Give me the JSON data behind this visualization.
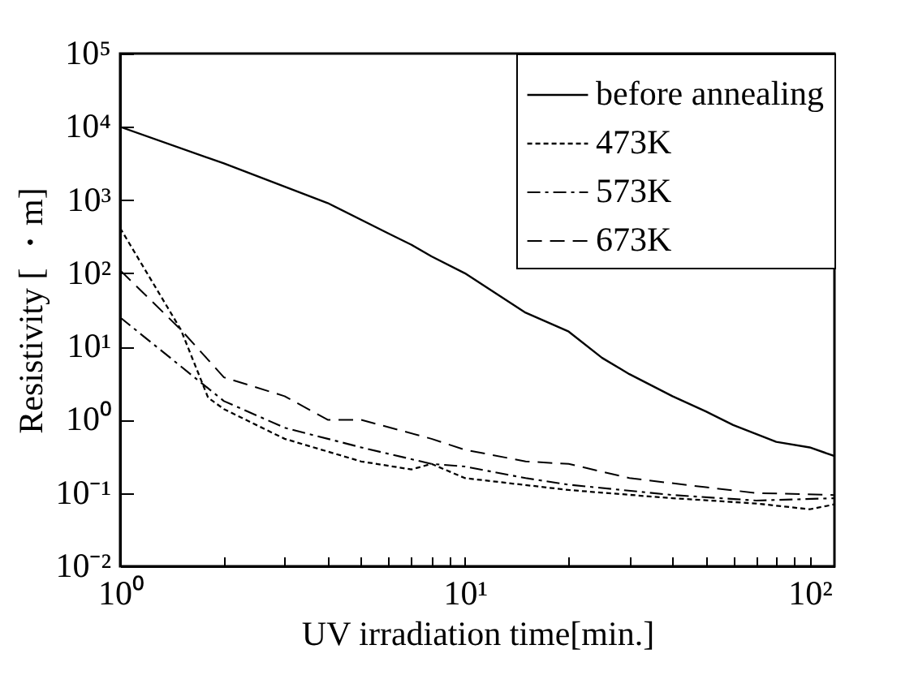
{
  "chart_data": {
    "type": "line",
    "xlabel": "UV irradiation time[min.]",
    "ylabel": "Resistivity [ ・m]",
    "log": "xy",
    "legend": "top right",
    "grid": false,
    "xlim": [
      1,
      118
    ],
    "ylim": [
      0.01,
      100000
    ],
    "xticks": [
      {
        "value": 1,
        "label": "10⁰"
      },
      {
        "value": 2,
        "label": null
      },
      {
        "value": 3,
        "label": null
      },
      {
        "value": 4,
        "label": null
      },
      {
        "value": 5,
        "label": null
      },
      {
        "value": 6,
        "label": null
      },
      {
        "value": 7,
        "label": null
      },
      {
        "value": 8,
        "label": null
      },
      {
        "value": 9,
        "label": null
      },
      {
        "value": 10,
        "label": "10¹"
      },
      {
        "value": 20,
        "label": null
      },
      {
        "value": 30,
        "label": null
      },
      {
        "value": 40,
        "label": null
      },
      {
        "value": 50,
        "label": null
      },
      {
        "value": 60,
        "label": null
      },
      {
        "value": 70,
        "label": null
      },
      {
        "value": 80,
        "label": null
      },
      {
        "value": 90,
        "label": null
      },
      {
        "value": 100,
        "label": "10²"
      }
    ],
    "yticks": [
      {
        "value": 0.01,
        "label": "10⁻²"
      },
      {
        "value": 0.1,
        "label": "10⁻¹"
      },
      {
        "value": 1,
        "label": "10⁰"
      },
      {
        "value": 10,
        "label": "10¹"
      },
      {
        "value": 100,
        "label": "10²"
      },
      {
        "value": 1000,
        "label": "10³"
      },
      {
        "value": 10000,
        "label": "10⁴"
      },
      {
        "value": 100000,
        "label": "10⁵"
      }
    ],
    "series": [
      {
        "name": "before annealing",
        "color": "#000000",
        "line_style": "solid",
        "x": [
          1,
          2,
          4,
          6,
          7,
          8,
          10,
          15,
          20,
          25,
          30,
          40,
          50,
          60,
          80,
          100,
          118
        ],
        "values": [
          10000,
          3160,
          910,
          350,
          245,
          170,
          100,
          29,
          16,
          7,
          4.2,
          2.1,
          1.3,
          0.85,
          0.5,
          0.42,
          0.32
        ]
      },
      {
        "name": "473K",
        "color": "#000000",
        "line_style": "dotted",
        "x": [
          1,
          1.5,
          1.8,
          2,
          3,
          5,
          7,
          8,
          10,
          20,
          40,
          70,
          100,
          118
        ],
        "values": [
          415,
          17,
          2,
          1.4,
          0.55,
          0.27,
          0.21,
          0.25,
          0.16,
          0.11,
          0.085,
          0.072,
          0.06,
          0.07
        ]
      },
      {
        "name": "573K",
        "color": "#000000",
        "line_style": "dashdot",
        "x": [
          1,
          2,
          3,
          5,
          8,
          10,
          15,
          20,
          40,
          70,
          118
        ],
        "values": [
          25,
          1.8,
          0.78,
          0.42,
          0.25,
          0.23,
          0.16,
          0.13,
          0.094,
          0.079,
          0.085
        ]
      },
      {
        "name": "673K",
        "color": "#000000",
        "line_style": "dashed",
        "x": [
          1,
          1.5,
          2,
          3,
          4,
          5,
          8,
          10,
          15,
          20,
          30,
          50,
          70,
          118
        ],
        "values": [
          110,
          17,
          3.8,
          2.1,
          1.0,
          1.0,
          0.55,
          0.39,
          0.27,
          0.25,
          0.16,
          0.12,
          0.1,
          0.094
        ]
      }
    ]
  }
}
